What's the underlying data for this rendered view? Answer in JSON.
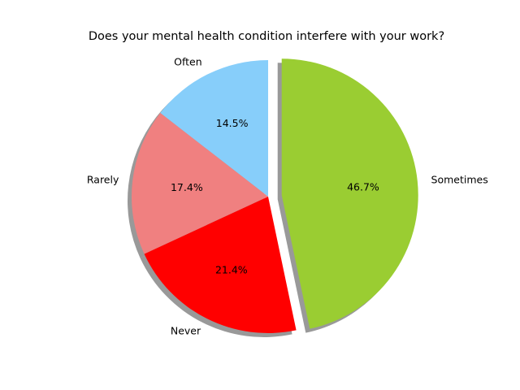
{
  "chart_data": {
    "type": "pie",
    "title": "Does your mental health condition interfere with your work?",
    "slices": [
      {
        "label": "Often",
        "value": 14.5,
        "pct_label": "14.5%",
        "color": "#87CEFA"
      },
      {
        "label": "Rarely",
        "value": 17.4,
        "pct_label": "17.4%",
        "color": "#F08080"
      },
      {
        "label": "Never",
        "value": 21.4,
        "pct_label": "21.4%",
        "color": "#FF0000"
      },
      {
        "label": "Sometimes",
        "value": 46.7,
        "pct_label": "46.7%",
        "color": "#9ACD32",
        "exploded": true
      }
    ],
    "shadow": true,
    "start_angle_deg": 90,
    "direction": "counterclockwise"
  }
}
